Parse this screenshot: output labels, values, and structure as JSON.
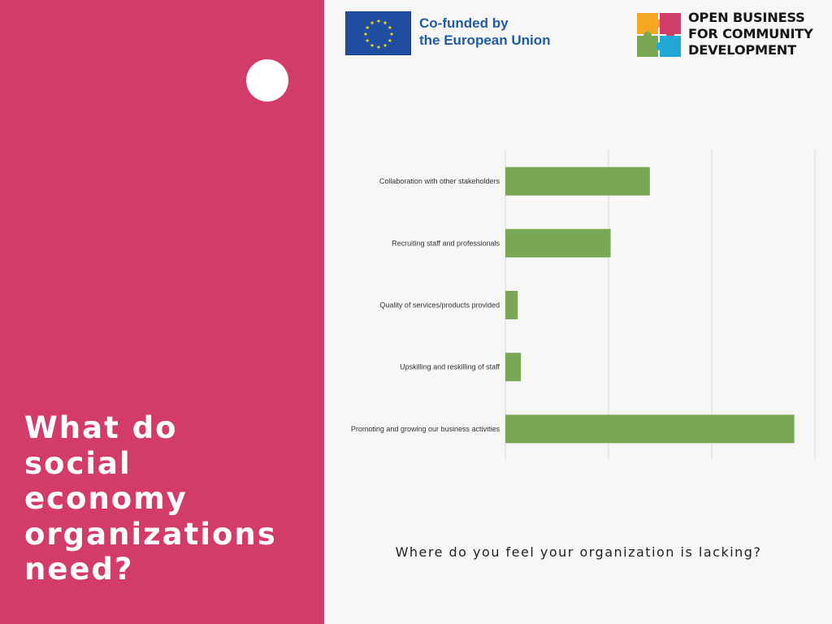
{
  "slide": {
    "heading": "What do\nsocial\neconomy\norganizations\nneed?"
  },
  "logos": {
    "eu": {
      "line1": "Co-funded by",
      "line2": "the European Union"
    },
    "open_business": {
      "line1": "OPEN BUSINESS",
      "line2": "FOR COMMUNITY",
      "line3": "DEVELOPMENT"
    }
  },
  "colors": {
    "panel": "#d33b68",
    "bar": "#7aa753",
    "eu_blue": "#1f4ea0",
    "eu_stars": "#ffdd00"
  },
  "chart_data": {
    "type": "bar",
    "orientation": "horizontal",
    "categories": [
      "Collaboration with other stakeholders",
      "Recruiting staff and professionals",
      "Quality of services/products provided",
      "Upskilling and reskilling of staff",
      "Promoting and growing our business activities"
    ],
    "values": [
      14,
      10.2,
      1.2,
      1.5,
      28
    ],
    "xlim": [
      0,
      30
    ],
    "grid": "vertical",
    "caption": "Where do you feel your organization is lacking?"
  }
}
